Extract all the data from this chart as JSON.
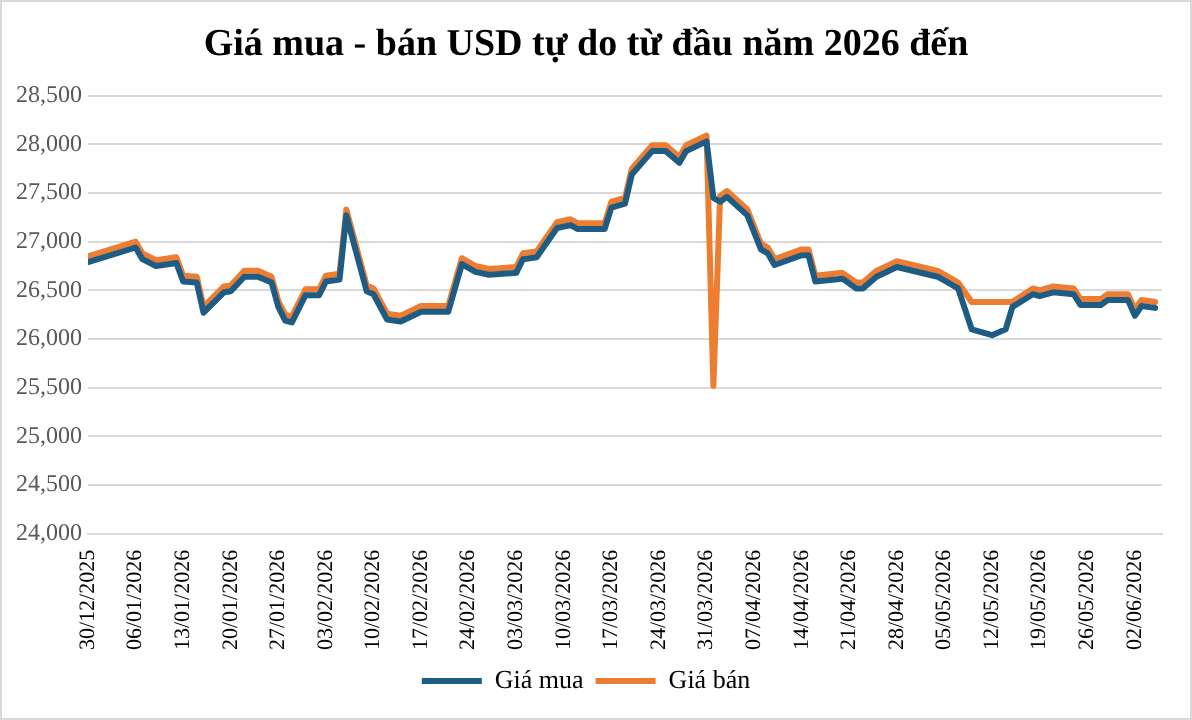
{
  "chart_data": {
    "type": "line",
    "title": "Giá mua - bán USD tự do từ đầu năm 2026 đến",
    "x": [
      "2025-12-30",
      "2026-01-06",
      "2026-01-07",
      "2026-01-09",
      "2026-01-12",
      "2026-01-13",
      "2026-01-15",
      "2026-01-16",
      "2026-01-19",
      "2026-01-20",
      "2026-01-22",
      "2026-01-24",
      "2026-01-26",
      "2026-01-27",
      "2026-01-28",
      "2026-01-29",
      "2026-01-31",
      "2026-02-02",
      "2026-02-03",
      "2026-02-05",
      "2026-02-06",
      "2026-02-09",
      "2026-02-10",
      "2026-02-12",
      "2026-02-14",
      "2026-02-17",
      "2026-02-21",
      "2026-02-23",
      "2026-02-25",
      "2026-02-27",
      "2026-03-03",
      "2026-03-04",
      "2026-03-06",
      "2026-03-09",
      "2026-03-11",
      "2026-03-12",
      "2026-03-16",
      "2026-03-17",
      "2026-03-19",
      "2026-03-20",
      "2026-03-23",
      "2026-03-25",
      "2026-03-27",
      "2026-03-28",
      "2026-03-31",
      "2026-04-01",
      "2026-04-02",
      "2026-04-03",
      "2026-04-06",
      "2026-04-08",
      "2026-04-09",
      "2026-04-10",
      "2026-04-14",
      "2026-04-15",
      "2026-04-16",
      "2026-04-20",
      "2026-04-22",
      "2026-04-23",
      "2026-04-25",
      "2026-04-28",
      "2026-05-04",
      "2026-05-06",
      "2026-05-07",
      "2026-05-09",
      "2026-05-12",
      "2026-05-14",
      "2026-05-15",
      "2026-05-18",
      "2026-05-19",
      "2026-05-21",
      "2026-05-24",
      "2026-05-25",
      "2026-05-28",
      "2026-05-29",
      "2026-06-01",
      "2026-06-02",
      "2026-06-03",
      "2026-06-05"
    ],
    "series": [
      {
        "name": "Giá mua",
        "color": "#1f5c84",
        "values": [
          26790,
          26940,
          26820,
          26750,
          26780,
          26590,
          26580,
          26270,
          26480,
          26490,
          26640,
          26640,
          26580,
          26330,
          26190,
          26170,
          26450,
          26450,
          26590,
          26610,
          27270,
          26490,
          26460,
          26200,
          26180,
          26280,
          26280,
          26770,
          26690,
          26660,
          26680,
          26820,
          26840,
          27140,
          27170,
          27130,
          27130,
          27350,
          27390,
          27690,
          27930,
          27930,
          27810,
          27930,
          28030,
          27450,
          27410,
          27460,
          27270,
          26920,
          26880,
          26760,
          26860,
          26860,
          26590,
          26620,
          26520,
          26520,
          26640,
          26740,
          26640,
          26560,
          26520,
          26100,
          26040,
          26100,
          26330,
          26460,
          26440,
          26480,
          26460,
          26350,
          26350,
          26400,
          26400,
          26240,
          26340,
          26320
        ]
      },
      {
        "name": "Giá bán",
        "color": "#ed7d31",
        "values": [
          26850,
          27000,
          26880,
          26810,
          26840,
          26650,
          26640,
          26330,
          26540,
          26550,
          26700,
          26700,
          26640,
          26390,
          26250,
          26230,
          26510,
          26510,
          26650,
          26670,
          27330,
          26550,
          26520,
          26260,
          26240,
          26340,
          26340,
          26830,
          26750,
          26720,
          26740,
          26880,
          26900,
          27200,
          27230,
          27190,
          27190,
          27410,
          27450,
          27750,
          27990,
          27990,
          27870,
          27990,
          28090,
          25520,
          27470,
          27520,
          27330,
          26980,
          26940,
          26820,
          26920,
          26920,
          26650,
          26680,
          26580,
          26580,
          26700,
          26800,
          26700,
          26620,
          26580,
          26380,
          26380,
          26380,
          26380,
          26520,
          26500,
          26540,
          26520,
          26410,
          26410,
          26460,
          26460,
          26300,
          26400,
          26380
        ]
      }
    ],
    "xlim": [
      "2025-12-30",
      "2026-06-06"
    ],
    "xticks": [
      {
        "value": "2025-12-30",
        "label": "30/12/2025"
      },
      {
        "value": "2026-01-06",
        "label": "06/01/2026"
      },
      {
        "value": "2026-01-13",
        "label": "13/01/2026"
      },
      {
        "value": "2026-01-20",
        "label": "20/01/2026"
      },
      {
        "value": "2026-01-27",
        "label": "27/01/2026"
      },
      {
        "value": "2026-02-03",
        "label": "03/02/2026"
      },
      {
        "value": "2026-02-10",
        "label": "10/02/2026"
      },
      {
        "value": "2026-02-17",
        "label": "17/02/2026"
      },
      {
        "value": "2026-02-24",
        "label": "24/02/2026"
      },
      {
        "value": "2026-03-03",
        "label": "03/03/2026"
      },
      {
        "value": "2026-03-10",
        "label": "10/03/2026"
      },
      {
        "value": "2026-03-17",
        "label": "17/03/2026"
      },
      {
        "value": "2026-03-24",
        "label": "24/03/2026"
      },
      {
        "value": "2026-03-31",
        "label": "31/03/2026"
      },
      {
        "value": "2026-04-07",
        "label": "07/04/2026"
      },
      {
        "value": "2026-04-14",
        "label": "14/04/2026"
      },
      {
        "value": "2026-04-21",
        "label": "21/04/2026"
      },
      {
        "value": "2026-04-28",
        "label": "28/04/2026"
      },
      {
        "value": "2026-05-05",
        "label": "05/05/2026"
      },
      {
        "value": "2026-05-12",
        "label": "12/05/2026"
      },
      {
        "value": "2026-05-19",
        "label": "19/05/2026"
      },
      {
        "value": "2026-05-26",
        "label": "26/05/2026"
      },
      {
        "value": "2026-06-02",
        "label": "02/06/2026"
      }
    ],
    "ylim": [
      24000,
      28500
    ],
    "yticks": [
      {
        "value": 24000,
        "label": "24,000"
      },
      {
        "value": 24500,
        "label": "24,500"
      },
      {
        "value": 25000,
        "label": "25,000"
      },
      {
        "value": 25500,
        "label": "25,500"
      },
      {
        "value": 26000,
        "label": "26,000"
      },
      {
        "value": 26500,
        "label": "26,500"
      },
      {
        "value": 27000,
        "label": "27,000"
      },
      {
        "value": 27500,
        "label": "27,500"
      },
      {
        "value": 28000,
        "label": "28,000"
      },
      {
        "value": 28500,
        "label": "28,500"
      }
    ],
    "grid": "y",
    "legend": "bottom",
    "marker": "none",
    "line_style": "solid"
  }
}
